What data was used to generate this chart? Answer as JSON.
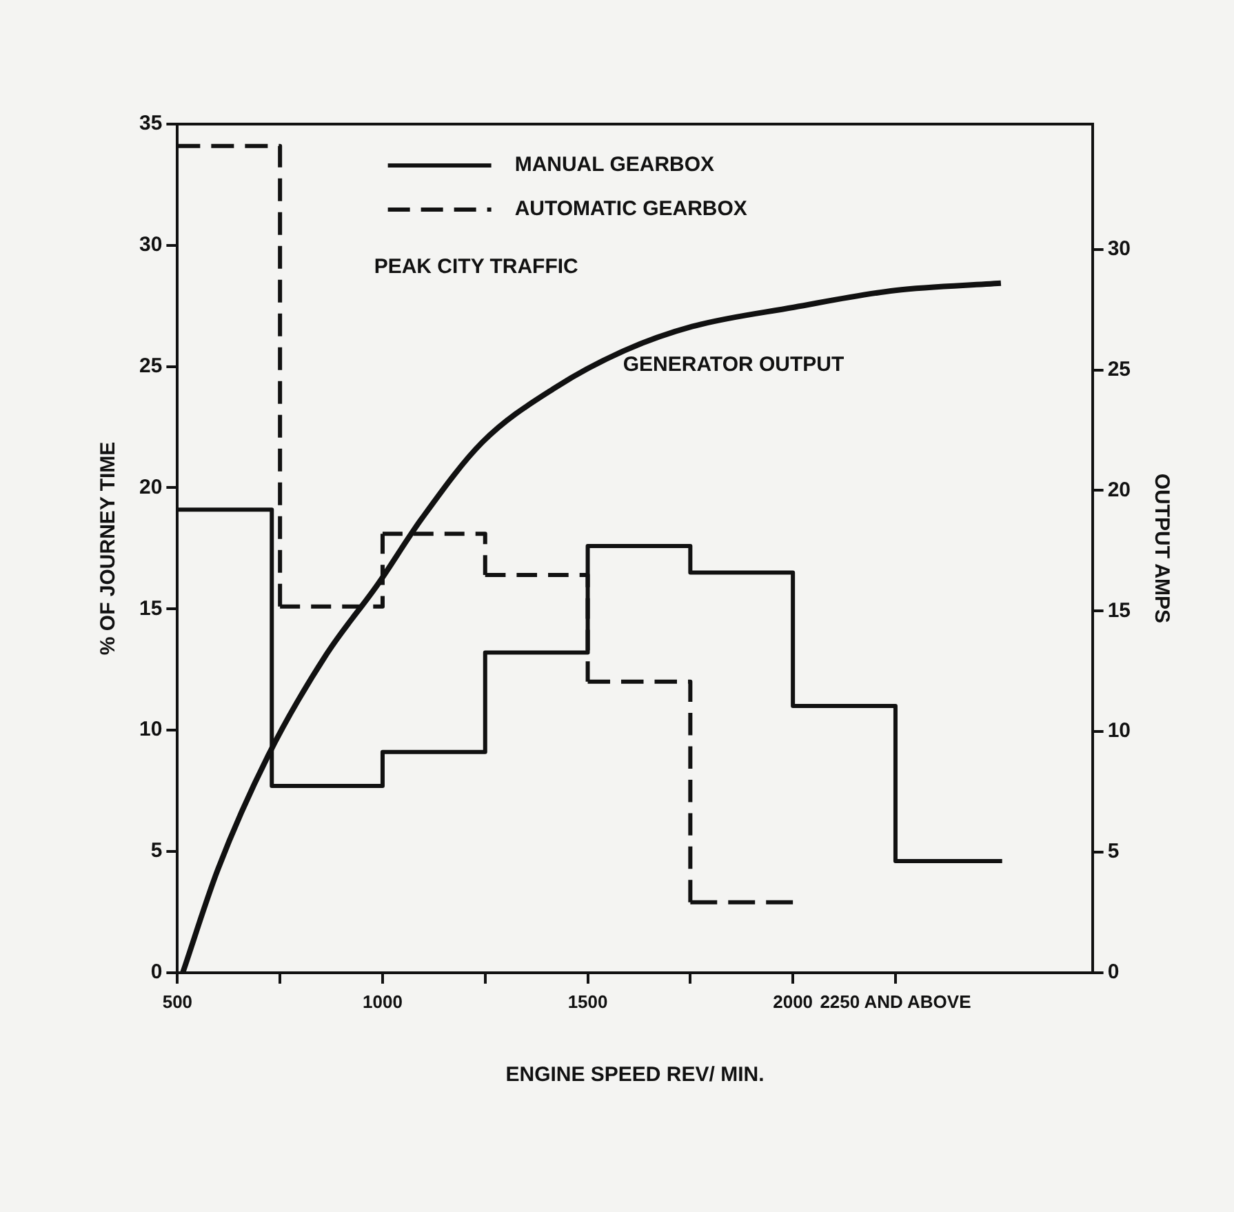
{
  "chart_data": {
    "type": "step",
    "xlabel": "ENGINE SPEED REV/ MIN.",
    "ylabel": "% OF JOURNEY TIME",
    "y2label": "OUTPUT AMPS",
    "annotations": [
      "PEAK CITY TRAFFIC"
    ],
    "xlim": [
      500,
      2730
    ],
    "xticks": [
      500,
      {
        "value": 750,
        "label": null
      },
      1000,
      {
        "value": 1250,
        "label": null
      },
      1500,
      {
        "value": 1750,
        "label": null
      },
      2000,
      {
        "value": 2250,
        "label": "2250 AND ABOVE"
      }
    ],
    "ylim": [
      0,
      35
    ],
    "yticks": [
      0,
      5,
      10,
      15,
      20,
      25,
      30,
      35
    ],
    "y2lim": [
      0,
      35.2
    ],
    "y2ticks": [
      0,
      5,
      10,
      15,
      20,
      25,
      30
    ],
    "grid": false,
    "legend": "top left",
    "marker": "none",
    "series": [
      {
        "name": "MANUAL GEARBOX",
        "type": "step",
        "color": "#111111",
        "line_style": "solid",
        "x": [
          500,
          730,
          1000,
          1250,
          1500,
          1750,
          2000,
          2250,
          2510
        ],
        "values": [
          19.1,
          7.7,
          9.1,
          13.2,
          17.6,
          16.5,
          11.0,
          4.6,
          4.6
        ]
      },
      {
        "name": "AUTOMATIC GEARBOX",
        "type": "step",
        "color": "#111111",
        "line_style": "dashed",
        "x": [
          500,
          750,
          1000,
          1250,
          1500,
          1750,
          2000
        ],
        "values": [
          34.1,
          15.1,
          18.1,
          16.4,
          12.0,
          2.9,
          2.9
        ]
      },
      {
        "name": "GENERATOR OUTPUT",
        "type": "line",
        "axis": "y2",
        "color": "#111111",
        "line_style": "solid",
        "x": [
          513,
          599,
          721,
          863,
          988,
          1094,
          1243,
          1424,
          1589,
          1754,
          2002,
          2249,
          2507
        ],
        "values": [
          0,
          4.3,
          9.0,
          13.2,
          16.1,
          18.8,
          22.0,
          24.3,
          25.8,
          26.8,
          27.6,
          28.3,
          28.6
        ]
      }
    ]
  }
}
